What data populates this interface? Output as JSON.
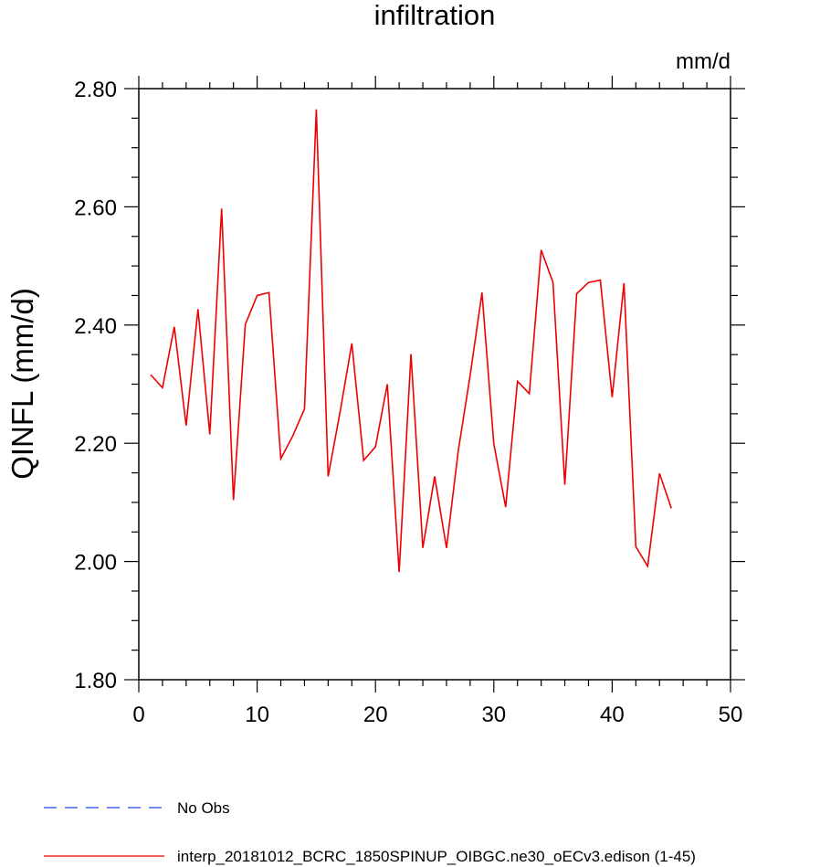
{
  "chart_data": {
    "type": "line",
    "title": "infiltration",
    "units": "mm/d",
    "xlabel": "",
    "ylabel": "QINFL  (mm/d)",
    "xlim": [
      0,
      50
    ],
    "ylim": [
      1.8,
      2.8
    ],
    "x_ticks": [
      0,
      10,
      20,
      30,
      40,
      50
    ],
    "x_tick_labels": [
      "0",
      "10",
      "20",
      "30",
      "40",
      "50"
    ],
    "y_ticks": [
      1.8,
      2.0,
      2.2,
      2.4,
      2.6,
      2.8
    ],
    "y_tick_labels": [
      "1.80",
      "2.00",
      "2.20",
      "2.40",
      "2.60",
      "2.80"
    ],
    "grid": false,
    "legend_position": "bottom",
    "series": [
      {
        "name": "No Obs",
        "color": "#2244ee",
        "style": "dashed",
        "x": [],
        "values": []
      },
      {
        "name": "interp_20181012_BCRC_1850SPINUP_OIBGC.ne30_oECv3.edison (1-45)",
        "color": "#ee0000",
        "style": "solid",
        "x": [
          1,
          2,
          3,
          4,
          5,
          6,
          7,
          8,
          9,
          10,
          11,
          12,
          13,
          14,
          15,
          16,
          17,
          18,
          19,
          20,
          21,
          22,
          23,
          24,
          25,
          26,
          27,
          28,
          29,
          30,
          31,
          32,
          33,
          34,
          35,
          36,
          37,
          38,
          39,
          40,
          41,
          42,
          43,
          44,
          45
        ],
        "values": [
          2.316,
          2.294,
          2.397,
          2.23,
          2.427,
          2.215,
          2.597,
          2.104,
          2.401,
          2.45,
          2.455,
          2.174,
          2.212,
          2.258,
          2.765,
          2.144,
          2.252,
          2.369,
          2.171,
          2.194,
          2.3,
          1.982,
          2.351,
          2.023,
          2.144,
          2.023,
          2.188,
          2.315,
          2.455,
          2.199,
          2.092,
          2.305,
          2.284,
          2.527,
          2.472,
          2.13,
          2.453,
          2.472,
          2.476,
          2.278,
          2.471,
          2.025,
          1.992,
          2.149,
          2.09
        ]
      }
    ]
  }
}
